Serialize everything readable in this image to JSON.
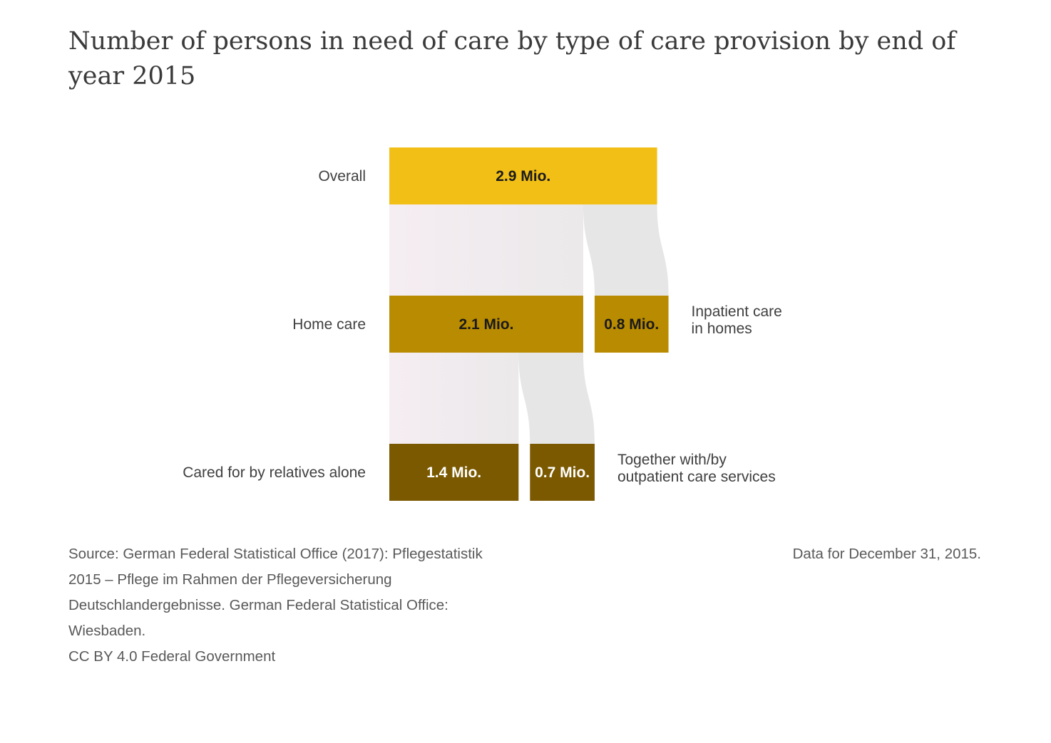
{
  "title": "Number of persons in need of care by type of care provision by end of year 2015",
  "source_lines": [
    "Source: German Federal Statistical Office (2017): Pflegestatistik",
    "2015 – Pflege im Rahmen der Pflegeversicherung",
    "Deutschlandergebnisse. German Federal Statistical Office:",
    "Wiesbaden.",
    "CC BY 4.0 Federal Government"
  ],
  "date_note": "Data for December 31, 2015.",
  "colors": {
    "overall": "#f2bf17",
    "level2": "#b98b00",
    "level3": "#7a5900",
    "flow_light": "#f1ecf0",
    "flow_grey": "#e6e6e6",
    "label_dark": "#1a1a1a",
    "label_light": "#ffffff"
  },
  "chart_data": {
    "type": "sankey",
    "unit": "Mio.",
    "levels": [
      {
        "row_label": "Overall",
        "nodes": [
          {
            "name": "Overall",
            "value": 2.9,
            "label": "2.9 Mio."
          }
        ]
      },
      {
        "row_label": "Home care",
        "nodes": [
          {
            "name": "Home care",
            "value": 2.1,
            "label": "2.1 Mio."
          },
          {
            "name": "Inpatient care in homes",
            "value": 0.8,
            "label": "0.8 Mio.",
            "side_label": [
              "Inpatient care",
              "in homes"
            ]
          }
        ]
      },
      {
        "row_label": "Cared for by relatives alone",
        "nodes": [
          {
            "name": "Cared for by relatives alone",
            "value": 1.4,
            "label": "1.4 Mio."
          },
          {
            "name": "Together with/by outpatient care services",
            "value": 0.7,
            "label": "0.7 Mio.",
            "side_label": [
              "Together with/by",
              "outpatient care services"
            ]
          }
        ]
      }
    ],
    "flows": [
      {
        "from": "Overall",
        "to": "Home care",
        "value": 2.1
      },
      {
        "from": "Overall",
        "to": "Inpatient care in homes",
        "value": 0.8
      },
      {
        "from": "Home care",
        "to": "Cared for by relatives alone",
        "value": 1.4
      },
      {
        "from": "Home care",
        "to": "Together with/by outpatient care services",
        "value": 0.7
      }
    ]
  }
}
